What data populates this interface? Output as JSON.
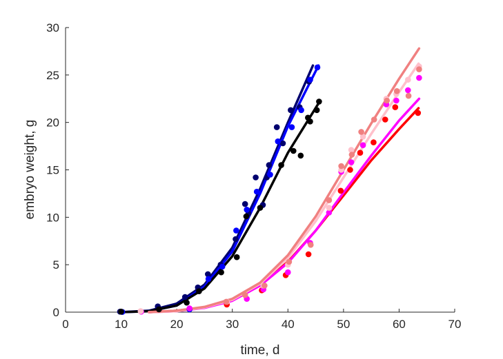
{
  "chart_data": {
    "type": "scatter",
    "title": "",
    "xlabel": "time, d",
    "ylabel": "embryo weight, g",
    "xlim": [
      0,
      70
    ],
    "ylim": [
      0,
      30
    ],
    "xticks": [
      0,
      10,
      20,
      30,
      40,
      50,
      60,
      70
    ],
    "yticks": [
      0,
      5,
      10,
      15,
      20,
      25,
      30
    ],
    "grid": false,
    "legend": "none",
    "series": [
      {
        "color": "#00006e",
        "points": [
          [
            9.8,
            0.05
          ],
          [
            16.6,
            0.6
          ],
          [
            21.5,
            1.6
          ],
          [
            23.8,
            2.6
          ],
          [
            25.6,
            4.0
          ],
          [
            27.9,
            5.0
          ],
          [
            30.6,
            7.7
          ],
          [
            32.3,
            11.4
          ],
          [
            32.9,
            10.4
          ],
          [
            34.2,
            14.2
          ],
          [
            35.5,
            11.3
          ],
          [
            36.2,
            14.2
          ],
          [
            36.6,
            15.5
          ],
          [
            38.0,
            19.5
          ],
          [
            39.1,
            17.8
          ],
          [
            40.5,
            21.3
          ],
          [
            42.1,
            21.6
          ],
          [
            43.8,
            24.3
          ]
        ],
        "curve": [
          [
            10,
            0
          ],
          [
            15,
            0.15
          ],
          [
            20,
            0.9
          ],
          [
            25,
            2.9
          ],
          [
            30,
            6.8
          ],
          [
            35,
            13.0
          ],
          [
            40,
            20.0
          ],
          [
            44.5,
            26.0
          ]
        ]
      },
      {
        "color": "#0000ff",
        "points": [
          [
            10.2,
            0.02
          ],
          [
            22.3,
            0.3
          ],
          [
            25.7,
            3.5
          ],
          [
            28.2,
            4.8
          ],
          [
            30.7,
            8.6
          ],
          [
            32.6,
            10.8
          ],
          [
            34.4,
            12.7
          ],
          [
            36.8,
            14.5
          ],
          [
            38.2,
            18.0
          ],
          [
            40.7,
            19.5
          ],
          [
            42.4,
            21.3
          ],
          [
            44.0,
            24.5
          ],
          [
            45.3,
            25.8
          ]
        ],
        "curve": [
          [
            10,
            0
          ],
          [
            15,
            0.1
          ],
          [
            20,
            0.7
          ],
          [
            25,
            2.7
          ],
          [
            30,
            6.4
          ],
          [
            35,
            12.5
          ],
          [
            40,
            19.6
          ],
          [
            45.5,
            26.0
          ]
        ]
      },
      {
        "color": "#000000",
        "points": [
          [
            10.0,
            0.05
          ],
          [
            16.8,
            0.3
          ],
          [
            21.8,
            1.0
          ],
          [
            24.0,
            2.2
          ],
          [
            28.0,
            4.2
          ],
          [
            30.8,
            5.8
          ],
          [
            32.5,
            10.1
          ],
          [
            35.0,
            11.0
          ],
          [
            38.8,
            15.5
          ],
          [
            41.0,
            17.0
          ],
          [
            42.3,
            16.5
          ],
          [
            43.6,
            20.5
          ],
          [
            44.0,
            20.1
          ],
          [
            45.2,
            21.3
          ],
          [
            45.6,
            22.2
          ]
        ],
        "curve": [
          [
            10,
            0
          ],
          [
            15,
            0.1
          ],
          [
            20,
            0.7
          ],
          [
            25,
            2.5
          ],
          [
            30,
            5.9
          ],
          [
            35,
            11.0
          ],
          [
            40,
            16.8
          ],
          [
            45.5,
            22.0
          ]
        ]
      },
      {
        "color": "#ff0000",
        "points": [
          [
            29.0,
            0.8
          ],
          [
            35.3,
            2.3
          ],
          [
            39.6,
            3.9
          ],
          [
            43.7,
            6.1
          ],
          [
            49.5,
            12.8
          ],
          [
            51.2,
            15.0
          ],
          [
            53.0,
            16.8
          ],
          [
            55.4,
            17.9
          ],
          [
            57.5,
            20.3
          ],
          [
            59.3,
            21.6
          ],
          [
            63.4,
            21.0
          ]
        ],
        "curve": [
          [
            15,
            0
          ],
          [
            20,
            0.15
          ],
          [
            25,
            0.5
          ],
          [
            30,
            1.3
          ],
          [
            35,
            2.9
          ],
          [
            40,
            5.3
          ],
          [
            45,
            8.6
          ],
          [
            50,
            12.3
          ],
          [
            55,
            16.0
          ],
          [
            60,
            19.3
          ],
          [
            63.5,
            21.5
          ]
        ]
      },
      {
        "color": "#ff00ff",
        "points": [
          [
            13.6,
            0.05
          ],
          [
            22.3,
            0.4
          ],
          [
            32.6,
            1.4
          ],
          [
            35.6,
            2.4
          ],
          [
            40.0,
            4.2
          ],
          [
            44.0,
            7.3
          ],
          [
            47.4,
            10.5
          ],
          [
            49.6,
            14.8
          ],
          [
            51.4,
            15.8
          ],
          [
            53.5,
            17.6
          ],
          [
            57.7,
            21.9
          ],
          [
            59.5,
            22.3
          ],
          [
            61.6,
            23.4
          ],
          [
            63.6,
            24.7
          ]
        ],
        "curve": [
          [
            15,
            0
          ],
          [
            20,
            0.1
          ],
          [
            25,
            0.45
          ],
          [
            30,
            1.2
          ],
          [
            35,
            2.8
          ],
          [
            40,
            5.2
          ],
          [
            45,
            8.6
          ],
          [
            50,
            12.6
          ],
          [
            55,
            16.5
          ],
          [
            60,
            20.2
          ],
          [
            63.6,
            22.5
          ]
        ]
      },
      {
        "color": "#ffc0cb",
        "points": [
          [
            13.5,
            0.1
          ],
          [
            29.0,
            1.1
          ],
          [
            35.6,
            2.8
          ],
          [
            40.0,
            5.0
          ],
          [
            47.4,
            11.0
          ],
          [
            49.6,
            15.0
          ],
          [
            51.4,
            17.1
          ],
          [
            53.5,
            18.5
          ],
          [
            57.7,
            22.5
          ],
          [
            59.5,
            23.0
          ],
          [
            61.6,
            24.5
          ],
          [
            63.6,
            25.9
          ]
        ],
        "curve": [
          [
            15,
            0
          ],
          [
            20,
            0.1
          ],
          [
            25,
            0.5
          ],
          [
            30,
            1.3
          ],
          [
            35,
            3.0
          ],
          [
            40,
            5.7
          ],
          [
            45,
            9.6
          ],
          [
            50,
            14.2
          ],
          [
            55,
            18.8
          ],
          [
            60,
            23.2
          ],
          [
            63.5,
            26.2
          ]
        ]
      },
      {
        "color": "#f08080",
        "points": [
          [
            28.9,
            1.1
          ],
          [
            32.3,
            1.8
          ],
          [
            35.8,
            2.8
          ],
          [
            40.2,
            5.3
          ],
          [
            44.1,
            7.1
          ],
          [
            47.4,
            11.8
          ],
          [
            49.6,
            15.4
          ],
          [
            51.5,
            16.6
          ],
          [
            53.2,
            19.0
          ],
          [
            55.5,
            20.3
          ],
          [
            57.8,
            22.3
          ],
          [
            59.6,
            23.3
          ],
          [
            61.7,
            22.8
          ],
          [
            63.6,
            25.6
          ]
        ],
        "curve": [
          [
            15,
            0
          ],
          [
            20,
            0.15
          ],
          [
            25,
            0.55
          ],
          [
            30,
            1.4
          ],
          [
            35,
            3.1
          ],
          [
            40,
            6.0
          ],
          [
            45,
            10.1
          ],
          [
            50,
            15.0
          ],
          [
            55,
            19.9
          ],
          [
            60,
            24.6
          ],
          [
            63.6,
            27.8
          ]
        ]
      }
    ]
  }
}
